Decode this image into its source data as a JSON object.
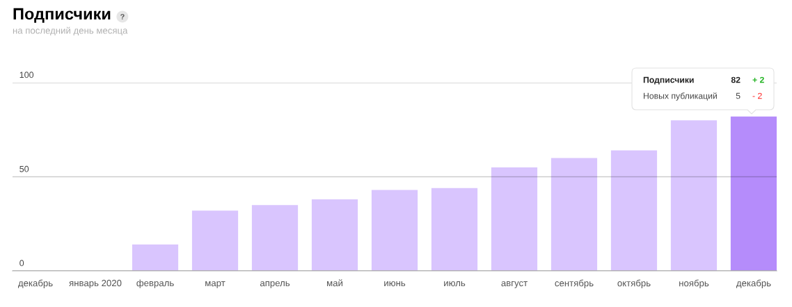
{
  "chart_data": {
    "type": "bar",
    "title": "Подписчики",
    "subtitle": "на последний день месяца",
    "categories": [
      "декабрь",
      "январь 2020",
      "февраль",
      "март",
      "апрель",
      "май",
      "июнь",
      "июль",
      "август",
      "сентябрь",
      "октябрь",
      "ноябрь",
      "декабрь"
    ],
    "values": [
      null,
      null,
      14,
      32,
      35,
      38,
      43,
      44,
      55,
      60,
      64,
      80,
      82
    ],
    "colors": [
      "#d9c5fe",
      "#d9c5fe",
      "#d9c5fe",
      "#d9c5fe",
      "#d9c5fe",
      "#d9c5fe",
      "#d9c5fe",
      "#d9c5fe",
      "#d9c5fe",
      "#d9c5fe",
      "#d9c5fe",
      "#d9c5fe",
      "#b58cfb"
    ],
    "ylim": [
      0,
      100
    ],
    "yticks": [
      0,
      50,
      100
    ],
    "grid": "y",
    "annotations": [
      "Подписчики",
      "82",
      "+ 2",
      "Новых публикаций",
      "5",
      "- 2"
    ]
  }
}
